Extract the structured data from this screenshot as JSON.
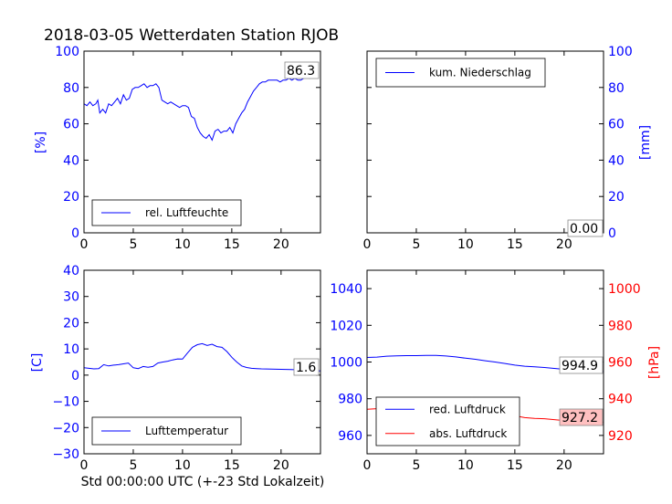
{
  "title": "2018-03-05 Wetterdaten Station RJOB",
  "xlabel": "Std 00:00:00 UTC (+-23 Std Lokalzeit)",
  "colors": {
    "blue": "#0000ff",
    "red": "#ff0000",
    "annotation_red_bg": "#ffc0c0"
  },
  "chart_data": [
    {
      "id": "humidity",
      "type": "line",
      "ylabel": "[%]",
      "xlim": [
        0,
        24
      ],
      "ylim": [
        0,
        100
      ],
      "xticks": [
        0,
        5,
        10,
        15,
        20
      ],
      "yticks": [
        0,
        20,
        40,
        60,
        80,
        100
      ],
      "legend": "lower-left",
      "series": [
        {
          "name": "rel. Luftfeuchte",
          "color": "#0000ff",
          "x": [
            0,
            0.3,
            0.6,
            0.9,
            1.2,
            1.4,
            1.6,
            1.9,
            2.2,
            2.5,
            2.8,
            3.1,
            3.4,
            3.7,
            4.0,
            4.3,
            4.6,
            4.9,
            5.2,
            5.5,
            5.8,
            6.1,
            6.4,
            6.7,
            7.0,
            7.3,
            7.6,
            7.9,
            8.2,
            8.5,
            8.8,
            9.1,
            9.4,
            9.7,
            10.0,
            10.3,
            10.6,
            10.9,
            11.2,
            11.5,
            11.8,
            12.1,
            12.4,
            12.7,
            13.0,
            13.3,
            13.6,
            13.9,
            14.2,
            14.5,
            14.8,
            15.1,
            15.4,
            15.7,
            16.0,
            16.3,
            16.6,
            16.9,
            17.2,
            17.5,
            17.8,
            18.1,
            18.4,
            18.7,
            19.0,
            19.3,
            19.6,
            19.9,
            20.2,
            20.5,
            20.8,
            21.1,
            21.4,
            21.7,
            22.0,
            22.3,
            22.6,
            22.9,
            23.2,
            23.5,
            23.8
          ],
          "y": [
            71,
            70,
            72,
            70,
            71,
            73,
            66,
            68,
            66,
            71,
            70,
            72,
            74,
            71,
            76,
            73,
            74,
            79,
            80,
            80,
            81,
            82,
            80,
            81,
            81,
            82,
            80,
            73,
            72,
            71,
            72,
            71,
            70,
            69,
            70,
            70,
            69,
            64,
            63,
            58,
            55,
            53,
            52,
            54,
            51,
            56,
            57,
            55,
            56,
            56,
            58,
            55,
            60,
            63,
            66,
            68,
            72,
            75,
            78,
            80,
            82,
            83,
            83,
            84,
            84,
            84,
            84,
            83,
            84,
            84,
            85,
            84,
            85,
            84,
            84,
            85,
            86,
            85,
            86,
            86,
            86
          ]
        }
      ],
      "annotation": "86.3"
    },
    {
      "id": "precipitation",
      "type": "line",
      "ylabel": "[mm]",
      "xlim": [
        0,
        24
      ],
      "ylim": [
        0,
        100
      ],
      "xticks": [
        0,
        5,
        10,
        15,
        20
      ],
      "yticks": [
        0,
        20,
        40,
        60,
        80,
        100
      ],
      "legend": "upper-left",
      "series": [
        {
          "name": "kum. Niederschlag",
          "color": "#0000ff",
          "x": [
            0,
            24
          ],
          "y": [
            0,
            0
          ]
        }
      ],
      "annotation": "0.00"
    },
    {
      "id": "temperature",
      "type": "line",
      "ylabel": "[C]",
      "xlim": [
        0,
        24
      ],
      "ylim": [
        -30,
        40
      ],
      "xticks": [
        0,
        5,
        10,
        15,
        20
      ],
      "yticks": [
        -30,
        -20,
        -10,
        0,
        10,
        20,
        30,
        40
      ],
      "legend": "lower-left",
      "series": [
        {
          "name": "Lufttemperatur",
          "color": "#0000ff",
          "x": [
            0,
            0.5,
            1.0,
            1.5,
            2.0,
            2.5,
            3.0,
            3.5,
            4.0,
            4.5,
            5.0,
            5.5,
            6.0,
            6.5,
            7.0,
            7.5,
            8.0,
            8.5,
            9.0,
            9.5,
            10.0,
            10.5,
            11.0,
            11.5,
            12.0,
            12.5,
            13.0,
            13.5,
            14.0,
            14.5,
            15.0,
            15.5,
            16.0,
            16.5,
            17.0,
            17.5,
            18.0,
            19.0,
            20.0,
            21.0,
            22.0,
            23.0,
            24.0
          ],
          "y": [
            2.8,
            2.6,
            2.4,
            2.5,
            4.0,
            3.5,
            3.8,
            4.0,
            4.3,
            4.6,
            2.8,
            2.5,
            3.3,
            3.0,
            3.3,
            4.6,
            5.0,
            5.3,
            5.8,
            6.2,
            6.1,
            8.4,
            10.6,
            11.6,
            12.0,
            11.3,
            11.8,
            10.9,
            10.6,
            9.0,
            6.8,
            5.0,
            3.5,
            2.9,
            2.6,
            2.5,
            2.4,
            2.3,
            2.2,
            2.1,
            2.0,
            1.8,
            1.6
          ]
        }
      ],
      "annotation": "1.6"
    },
    {
      "id": "pressure",
      "type": "line",
      "ylim_left": [
        950,
        1050
      ],
      "ylim_right": [
        910,
        1010
      ],
      "ylabel_right": "[hPa]",
      "xlim": [
        0,
        24
      ],
      "xticks": [
        0,
        5,
        10,
        15,
        20
      ],
      "yticks_left": [
        960,
        980,
        1000,
        1020,
        1040
      ],
      "yticks_right": [
        920,
        940,
        960,
        980,
        1000
      ],
      "legend": "lower-left",
      "series": [
        {
          "name": "red. Luftdruck",
          "color": "#0000ff",
          "axis": "left",
          "x": [
            0,
            1,
            2,
            3,
            4,
            5,
            6,
            7,
            8,
            9,
            10,
            11,
            12,
            13,
            14,
            15,
            16,
            17,
            18,
            19,
            20,
            21,
            22,
            23,
            24
          ],
          "y": [
            1002.5,
            1002.7,
            1003.2,
            1003.4,
            1003.5,
            1003.5,
            1003.6,
            1003.6,
            1003.3,
            1002.8,
            1002.1,
            1001.5,
            1000.7,
            1000.0,
            999.2,
            998.3,
            997.7,
            997.4,
            997.0,
            996.5,
            996.0,
            995.6,
            995.2,
            994.9,
            994.9
          ]
        },
        {
          "name": "abs. Luftdruck",
          "color": "#ff0000",
          "axis": "right",
          "x": [
            0,
            1,
            2,
            3,
            4,
            5,
            6,
            7,
            8,
            9,
            10,
            11,
            12,
            13,
            14,
            15,
            16,
            17,
            18,
            19,
            20,
            21,
            22,
            23,
            24
          ],
          "y": [
            934.3,
            934.6,
            935.2,
            935.6,
            935.7,
            935.6,
            935.7,
            935.6,
            935.2,
            934.7,
            934.0,
            933.6,
            933.2,
            932.5,
            931.8,
            930.7,
            929.7,
            929.3,
            929.1,
            928.6,
            928.1,
            927.7,
            927.4,
            927.2,
            927.2
          ]
        }
      ],
      "annotations": [
        "994.9",
        "927.2"
      ]
    }
  ]
}
